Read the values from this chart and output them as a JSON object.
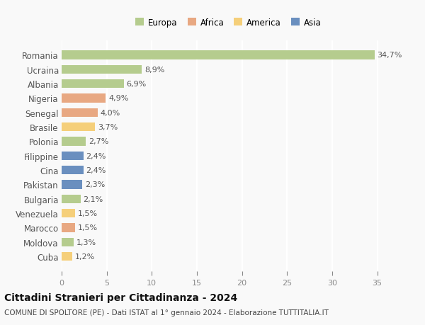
{
  "countries": [
    "Romania",
    "Ucraina",
    "Albania",
    "Nigeria",
    "Senegal",
    "Brasile",
    "Polonia",
    "Filippine",
    "Cina",
    "Pakistan",
    "Bulgaria",
    "Venezuela",
    "Marocco",
    "Moldova",
    "Cuba"
  ],
  "values": [
    34.7,
    8.9,
    6.9,
    4.9,
    4.0,
    3.7,
    2.7,
    2.4,
    2.4,
    2.3,
    2.1,
    1.5,
    1.5,
    1.3,
    1.2
  ],
  "labels": [
    "34,7%",
    "8,9%",
    "6,9%",
    "4,9%",
    "4,0%",
    "3,7%",
    "2,7%",
    "2,4%",
    "2,4%",
    "2,3%",
    "2,1%",
    "1,5%",
    "1,5%",
    "1,3%",
    "1,2%"
  ],
  "continents": [
    "Europa",
    "Europa",
    "Europa",
    "Africa",
    "Africa",
    "America",
    "Europa",
    "Asia",
    "Asia",
    "Asia",
    "Europa",
    "America",
    "Africa",
    "Europa",
    "America"
  ],
  "colors": {
    "Europa": "#b5cc8e",
    "Africa": "#e8a882",
    "America": "#f5cf7a",
    "Asia": "#6a8fbf"
  },
  "legend_order": [
    "Europa",
    "Africa",
    "America",
    "Asia"
  ],
  "legend_colors": [
    "#b5cc8e",
    "#e8a882",
    "#f5cf7a",
    "#6a8fbf"
  ],
  "xlim": [
    0,
    37
  ],
  "xticks": [
    0,
    5,
    10,
    15,
    20,
    25,
    30,
    35
  ],
  "title": "Cittadini Stranieri per Cittadinanza - 2024",
  "subtitle": "COMUNE DI SPOLTORE (PE) - Dati ISTAT al 1° gennaio 2024 - Elaborazione TUTTITALIA.IT",
  "background_color": "#f9f9f9",
  "grid_color": "#ffffff",
  "bar_height": 0.6,
  "label_fontsize": 8,
  "tick_fontsize": 8,
  "ytick_fontsize": 8.5,
  "title_fontsize": 10,
  "subtitle_fontsize": 7.5,
  "legend_fontsize": 8.5
}
